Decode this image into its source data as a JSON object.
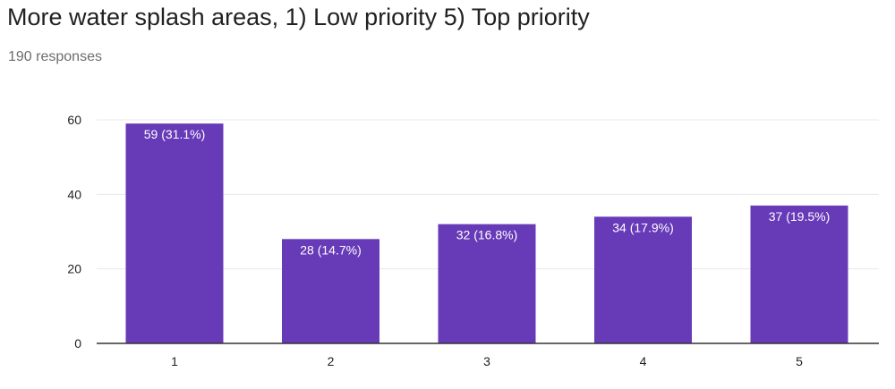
{
  "title": "More water splash areas, 1) Low priority 5) Top priority",
  "subtitle": "190 responses",
  "colors": {
    "bar": "#673ab7",
    "grid": "#e8e8e8",
    "axis": "#333333"
  },
  "chart_data": {
    "type": "bar",
    "categories": [
      "1",
      "2",
      "3",
      "4",
      "5"
    ],
    "values": [
      59,
      28,
      32,
      34,
      37
    ],
    "data_labels": [
      "59 (31.1%)",
      "28 (14.7%)",
      "32 (16.8%)",
      "34 (17.9%)",
      "37 (19.5%)"
    ],
    "yticks": [
      0,
      20,
      40,
      60
    ],
    "ylim": [
      0,
      60
    ],
    "grid": true,
    "legend": "none"
  }
}
